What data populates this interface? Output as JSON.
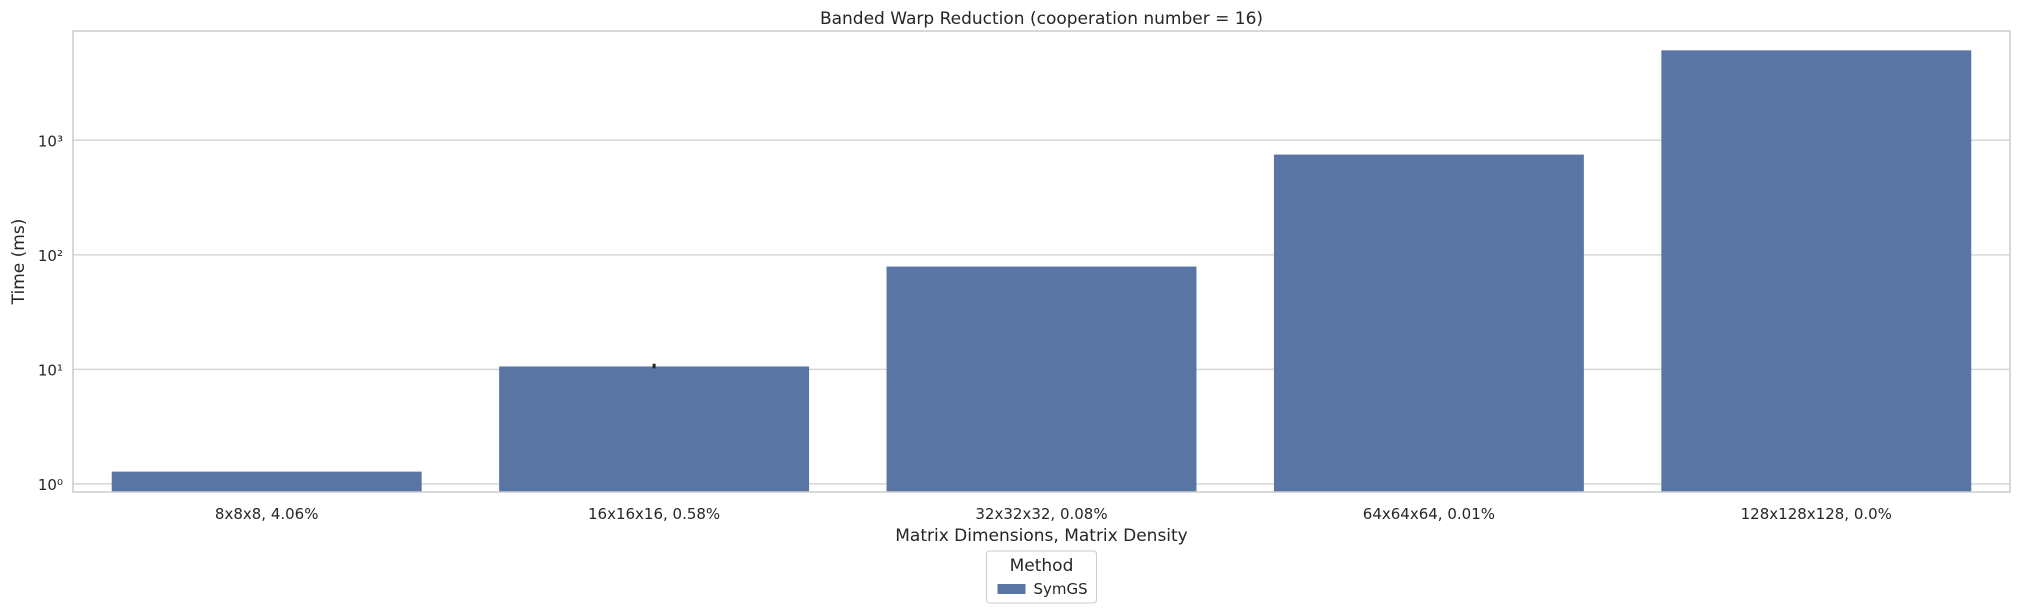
{
  "chart_data": {
    "type": "bar",
    "title": "Banded Warp Reduction (cooperation number = 16)",
    "xlabel": "Matrix Dimensions, Matrix Density",
    "ylabel": "Time (ms)",
    "yscale": "log",
    "ylim": [
      0.85,
      9000
    ],
    "yticks": [
      {
        "value": 1,
        "label": "10⁰"
      },
      {
        "value": 10,
        "label": "10¹"
      },
      {
        "value": 100,
        "label": "10²"
      },
      {
        "value": 1000,
        "label": "10³"
      }
    ],
    "grid": true,
    "categories": [
      "8x8x8, 4.06%",
      "16x16x16, 0.58%",
      "32x32x32, 0.08%",
      "64x64x64, 0.01%",
      "128x128x128, 0.0%"
    ],
    "series": [
      {
        "name": "SymGS",
        "color": "#5975a4",
        "values": [
          1.28,
          10.6,
          79,
          750,
          6100
        ],
        "error": [
          null,
          [
            10.2,
            11.2
          ],
          null,
          null,
          null
        ]
      }
    ],
    "legend": {
      "title": "Method",
      "placement": "bottom-center"
    }
  }
}
